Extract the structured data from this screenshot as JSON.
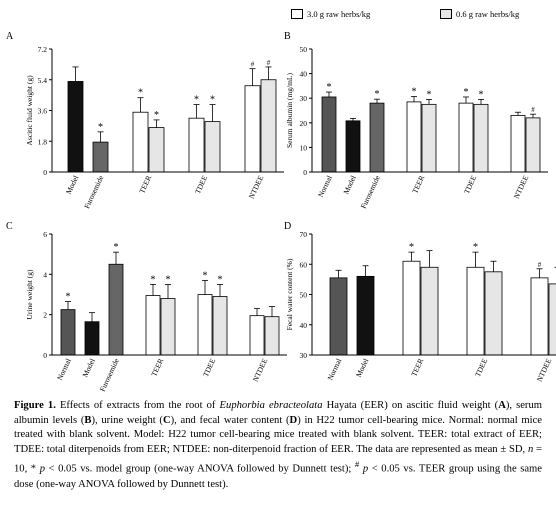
{
  "legend": {
    "items": [
      {
        "label": "3.0 g raw herbs/kg",
        "color": "#ffffff"
      },
      {
        "label": "0.6 g raw herbs/kg",
        "color": "#e6e6e6"
      }
    ]
  },
  "colors": {
    "model": "#111111",
    "normal": "#555555",
    "furosemide": "#666666",
    "high_dose": "#ffffff",
    "low_dose": "#e6e6e6"
  },
  "caption": {
    "figure_label": "Figure 1.",
    "text_1": " Effects of extracts from the root of ",
    "species": "Euphorbia ebracteolata",
    "text_2": " Hayata (EER) on ascitic fluid weight (",
    "A": "A",
    "text_3": "), serum albumin levels (",
    "B": "B",
    "text_4": "), urine weight (",
    "C": "C",
    "text_5": "), and fecal water content (",
    "D": "D",
    "text_6": ") in H22 tumor cell-bearing mice. Normal: normal mice treated with blank solvent. Model: H22 tumor cell-bearing mice treated with blank solvent. TEER: total extract of EER; TDEE: total diterpenoids from EER; NTDEE: non-diterpenoid fraction of EER. The data are represented as mean ± SD, ",
    "n_var": "n",
    "text_7": " = 10, * ",
    "p_var1": "p",
    "text_8": " < 0.05 vs. model group (one-way ANOVA followed by Dunnett test); ",
    "hash": "#",
    "text_9": " ",
    "p_var2": "p",
    "text_10": " < 0.05 vs. TEER group using the same dose (one-way ANOVA followed by Dunnett test)."
  },
  "chart_data": [
    {
      "panel": "A",
      "type": "bar",
      "ylabel": "Ascitic fluid weight  (g)",
      "ylim": [
        0,
        7.2
      ],
      "yticks": [
        "0",
        "1.8",
        "3.6",
        "5.4",
        "7.2"
      ],
      "categories": [
        "Model",
        "Furosemide",
        "TEER",
        "TDEE",
        "NTDEE"
      ],
      "bars": [
        {
          "group": "Model",
          "series": "control",
          "value": 5.3,
          "error": 0.85,
          "mark": "",
          "fill": "#111111"
        },
        {
          "group": "Furosemide",
          "series": "control",
          "value": 1.75,
          "error": 0.6,
          "mark": "*",
          "fill": "#666666"
        },
        {
          "group": "TEER",
          "series": "3.0 g raw herbs/kg",
          "value": 3.5,
          "error": 0.85,
          "mark": "*",
          "fill": "#ffffff"
        },
        {
          "group": "TEER",
          "series": "0.6 g raw herbs/kg",
          "value": 2.6,
          "error": 0.45,
          "mark": "*",
          "fill": "#e6e6e6"
        },
        {
          "group": "TDEE",
          "series": "3.0 g raw herbs/kg",
          "value": 3.15,
          "error": 0.8,
          "mark": "*",
          "fill": "#ffffff"
        },
        {
          "group": "TDEE",
          "series": "0.6 g raw herbs/kg",
          "value": 2.95,
          "error": 1.0,
          "mark": "*",
          "fill": "#e6e6e6"
        },
        {
          "group": "NTDEE",
          "series": "3.0 g raw herbs/kg",
          "value": 5.05,
          "error": 1.0,
          "mark": "#",
          "fill": "#ffffff"
        },
        {
          "group": "NTDEE",
          "series": "0.6 g raw herbs/kg",
          "value": 5.4,
          "error": 0.75,
          "mark": "#",
          "fill": "#e6e6e6"
        }
      ]
    },
    {
      "panel": "B",
      "type": "bar",
      "ylabel": "Serum albumin  (mg/mL)",
      "ylim": [
        0,
        50
      ],
      "yticks": [
        "0",
        "10",
        "20",
        "30",
        "40",
        "50"
      ],
      "categories": [
        "Normal",
        "Model",
        "Furosemide",
        "TEER",
        "TDEE",
        "NTDEE"
      ],
      "bars": [
        {
          "group": "Normal",
          "series": "control",
          "value": 30.5,
          "error": 2.0,
          "mark": "*",
          "fill": "#555555"
        },
        {
          "group": "Model",
          "series": "control",
          "value": 20.8,
          "error": 1.0,
          "mark": "",
          "fill": "#111111"
        },
        {
          "group": "Furosemide",
          "series": "control",
          "value": 28.0,
          "error": 1.6,
          "mark": "*",
          "fill": "#666666"
        },
        {
          "group": "TEER",
          "series": "3.0 g raw herbs/kg",
          "value": 28.5,
          "error": 2.2,
          "mark": "*",
          "fill": "#ffffff"
        },
        {
          "group": "TEER",
          "series": "0.6 g raw herbs/kg",
          "value": 27.5,
          "error": 2.0,
          "mark": "*",
          "fill": "#e6e6e6"
        },
        {
          "group": "TDEE",
          "series": "3.0 g raw herbs/kg",
          "value": 28.0,
          "error": 2.5,
          "mark": "*",
          "fill": "#ffffff"
        },
        {
          "group": "TDEE",
          "series": "0.6 g raw herbs/kg",
          "value": 27.5,
          "error": 2.0,
          "mark": "*",
          "fill": "#e6e6e6"
        },
        {
          "group": "NTDEE",
          "series": "3.0 g raw herbs/kg",
          "value": 23.0,
          "error": 1.3,
          "mark": "",
          "fill": "#ffffff"
        },
        {
          "group": "NTDEE",
          "series": "0.6 g raw herbs/kg",
          "value": 22.0,
          "error": 1.5,
          "mark": "#",
          "fill": "#e6e6e6"
        }
      ]
    },
    {
      "panel": "C",
      "type": "bar",
      "ylabel": "Urine weight  (g)",
      "ylim": [
        0,
        6
      ],
      "yticks": [
        "0",
        "2",
        "4",
        "6"
      ],
      "categories": [
        "Normal",
        "Model",
        "Furosemide",
        "TEER",
        "TDEE",
        "NTDEE"
      ],
      "bars": [
        {
          "group": "Normal",
          "series": "control",
          "value": 2.25,
          "error": 0.4,
          "mark": "*",
          "fill": "#555555"
        },
        {
          "group": "Model",
          "series": "control",
          "value": 1.65,
          "error": 0.45,
          "mark": "",
          "fill": "#111111"
        },
        {
          "group": "Furosemide",
          "series": "control",
          "value": 4.5,
          "error": 0.6,
          "mark": "*",
          "fill": "#666666"
        },
        {
          "group": "TEER",
          "series": "3.0 g raw herbs/kg",
          "value": 2.95,
          "error": 0.55,
          "mark": "*",
          "fill": "#ffffff"
        },
        {
          "group": "TEER",
          "series": "0.6 g raw herbs/kg",
          "value": 2.8,
          "error": 0.7,
          "mark": "*",
          "fill": "#e6e6e6"
        },
        {
          "group": "TDEE",
          "series": "3.0 g raw herbs/kg",
          "value": 3.0,
          "error": 0.7,
          "mark": "*",
          "fill": "#ffffff"
        },
        {
          "group": "TDEE",
          "series": "0.6 g raw herbs/kg",
          "value": 2.9,
          "error": 0.6,
          "mark": "*",
          "fill": "#e6e6e6"
        },
        {
          "group": "NTDEE",
          "series": "3.0 g raw herbs/kg",
          "value": 1.95,
          "error": 0.35,
          "mark": "",
          "fill": "#ffffff"
        },
        {
          "group": "NTDEE",
          "series": "0.6 g raw herbs/kg",
          "value": 1.9,
          "error": 0.5,
          "mark": "",
          "fill": "#e6e6e6"
        }
      ]
    },
    {
      "panel": "D",
      "type": "bar",
      "ylabel": "Fecal water content  (%)",
      "ylim": [
        30,
        70
      ],
      "yticks": [
        "30",
        "40",
        "50",
        "60",
        "70"
      ],
      "categories": [
        "Normal",
        "Model",
        "TEER",
        "TDEE",
        "NTDEE"
      ],
      "bars": [
        {
          "group": "Normal",
          "series": "control",
          "value": 55.5,
          "error": 2.5,
          "mark": "",
          "fill": "#555555"
        },
        {
          "group": "Model",
          "series": "control",
          "value": 56.0,
          "error": 3.5,
          "mark": "",
          "fill": "#111111"
        },
        {
          "group": "TEER",
          "series": "3.0 g raw herbs/kg",
          "value": 61.0,
          "error": 3.0,
          "mark": "*",
          "fill": "#ffffff"
        },
        {
          "group": "TEER",
          "series": "0.6 g raw herbs/kg",
          "value": 59.0,
          "error": 5.5,
          "mark": "",
          "fill": "#e6e6e6"
        },
        {
          "group": "TDEE",
          "series": "3.0 g raw herbs/kg",
          "value": 59.0,
          "error": 5.0,
          "mark": "*",
          "fill": "#ffffff"
        },
        {
          "group": "TDEE",
          "series": "0.6 g raw herbs/kg",
          "value": 57.5,
          "error": 3.5,
          "mark": "",
          "fill": "#e6e6e6"
        },
        {
          "group": "NTDEE",
          "series": "3.0 g raw herbs/kg",
          "value": 55.5,
          "error": 3.0,
          "mark": "#",
          "fill": "#ffffff"
        },
        {
          "group": "NTDEE",
          "series": "0.6 g raw herbs/kg",
          "value": 53.5,
          "error": 5.5,
          "mark": "",
          "fill": "#e6e6e6"
        }
      ]
    }
  ]
}
